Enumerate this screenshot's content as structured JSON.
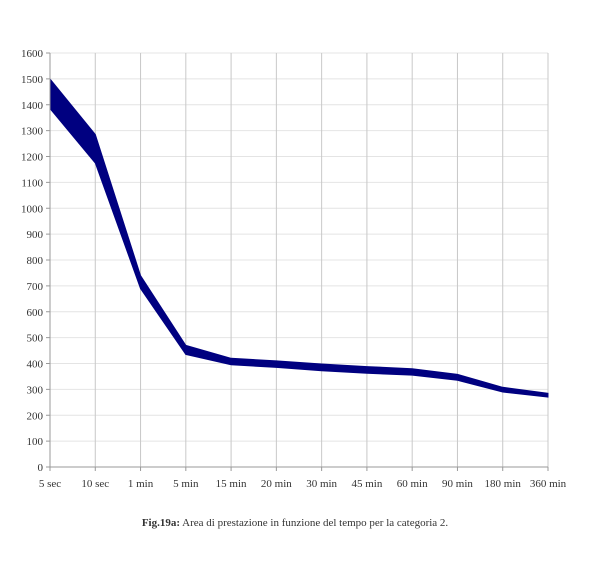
{
  "chart_data": {
    "type": "area",
    "categories": [
      "5 sec",
      "10 sec",
      "1 min",
      "5 min",
      "15 min",
      "20 min",
      "30 min",
      "45 min",
      "60 min",
      "90 min",
      "180 min",
      "360 min"
    ],
    "series": [
      {
        "values": [
          1500,
          1285,
          740,
          470,
          420,
          410,
          398,
          388,
          380,
          358,
          308,
          285
        ]
      },
      {
        "values": [
          1385,
          1175,
          690,
          435,
          395,
          385,
          372,
          362,
          355,
          335,
          290,
          270
        ]
      }
    ],
    "ylim": [
      0,
      1600
    ],
    "yticks": [
      0,
      100,
      200,
      300,
      400,
      500,
      600,
      700,
      800,
      900,
      1000,
      1100,
      1200,
      1300,
      1400,
      1500,
      1600
    ],
    "fill_color": "#000080",
    "grid": true
  },
  "caption": {
    "label": "Fig.19a:",
    "text": " Area di prestazione in funzione del tempo per la categoria 2."
  }
}
